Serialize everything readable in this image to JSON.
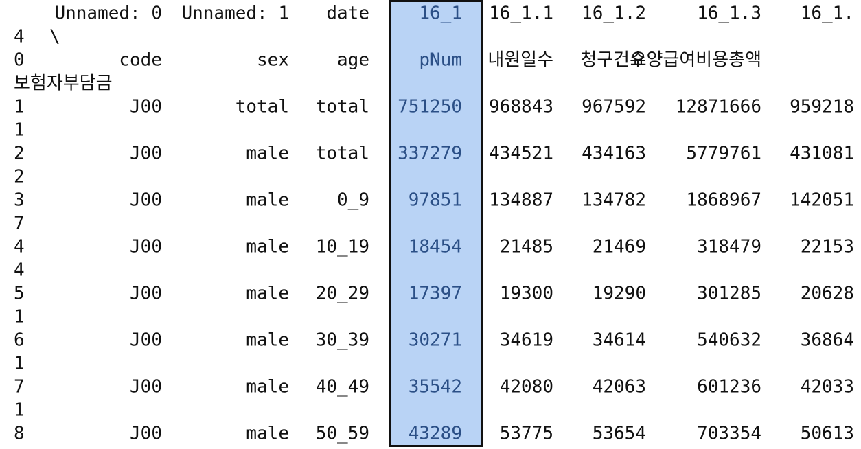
{
  "header": {
    "row1": [
      "",
      "Unnamed: 0",
      "Unnamed: 1",
      "date",
      "16_1",
      "16_1.1",
      "16_1.2",
      "16_1.3",
      "16_1."
    ],
    "row1_wrap": [
      "4",
      "\\"
    ],
    "row2": [
      "0",
      "code",
      "sex",
      "age",
      "pNum",
      "내원일수",
      "청구건수",
      "요양급여비용총액"
    ],
    "row2_wrap": "보험자부담금"
  },
  "rows": [
    {
      "cells": [
        "1",
        "J00",
        "total",
        "total",
        "751250",
        "968843",
        "967592",
        "12871666",
        "959218"
      ],
      "wrap": "1"
    },
    {
      "cells": [
        "2",
        "J00",
        "male",
        "total",
        "337279",
        "434521",
        "434163",
        "5779761",
        "431081"
      ],
      "wrap": "2"
    },
    {
      "cells": [
        "3",
        "J00",
        "male",
        "0_9",
        "97851",
        "134887",
        "134782",
        "1868967",
        "142051"
      ],
      "wrap": "7"
    },
    {
      "cells": [
        "4",
        "J00",
        "male",
        "10_19",
        "18454",
        "21485",
        "21469",
        "318479",
        "22153"
      ],
      "wrap": "4"
    },
    {
      "cells": [
        "5",
        "J00",
        "male",
        "20_29",
        "17397",
        "19300",
        "19290",
        "301285",
        "20628"
      ],
      "wrap": "1"
    },
    {
      "cells": [
        "6",
        "J00",
        "male",
        "30_39",
        "30271",
        "34619",
        "34614",
        "540632",
        "36864"
      ],
      "wrap": "1"
    },
    {
      "cells": [
        "7",
        "J00",
        "male",
        "40_49",
        "35542",
        "42080",
        "42063",
        "601236",
        "42033"
      ],
      "wrap": "1"
    },
    {
      "cells": [
        "8",
        "J00",
        "male",
        "50_59",
        "43289",
        "53775",
        "53654",
        "703354",
        "50613"
      ]
    }
  ]
}
